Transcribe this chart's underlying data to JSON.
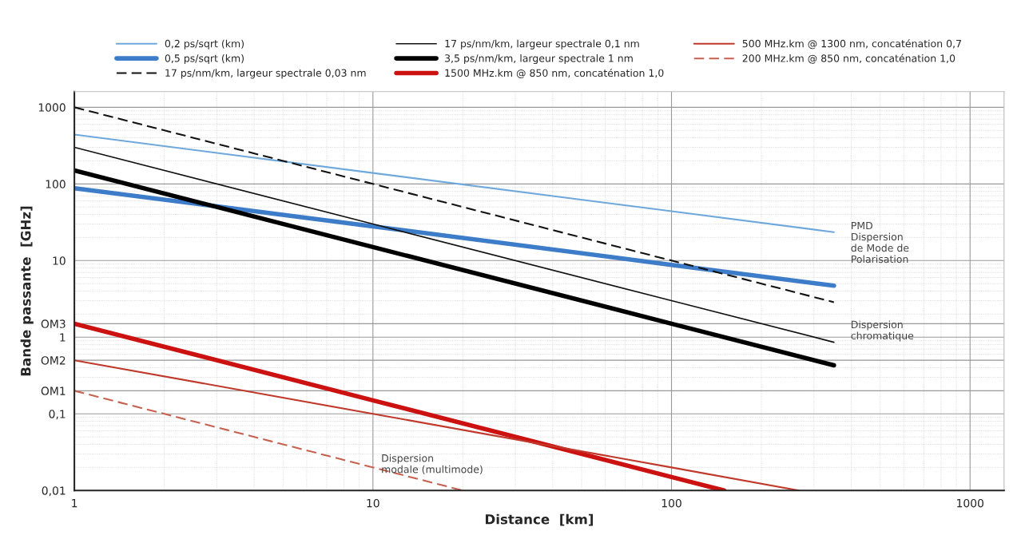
{
  "chart_data": {
    "type": "line",
    "xlabel": "Distance  [km]",
    "ylabel": "Bande passante  [GHz]",
    "log": "xy",
    "xlim": [
      1,
      1300
    ],
    "ylim": [
      0.01,
      1600
    ],
    "xticks": [
      1,
      10,
      100,
      1000
    ],
    "yticks": [
      {
        "value": 0.01,
        "label": "0,01"
      },
      {
        "value": 0.1,
        "label": "0,1"
      },
      {
        "value": 0.2,
        "label": "OM1"
      },
      {
        "value": 0.5,
        "label": "OM2"
      },
      {
        "value": 1,
        "label": "1"
      },
      {
        "value": 1.5,
        "label": "OM3"
      },
      {
        "value": 10,
        "label": "10"
      },
      {
        "value": 100,
        "label": "100"
      },
      {
        "value": 1000,
        "label": "1000"
      }
    ],
    "grid": true,
    "legend": "top",
    "marker": "none",
    "series": [
      {
        "name": "0,2 ps/sqrt (km)",
        "color": "#6fa8dc",
        "x": [
          1,
          10,
          100,
          350
        ],
        "values": [
          440,
          139,
          44,
          23.5
        ],
        "line_style": "solid"
      },
      {
        "name": "0,5 ps/sqrt (km)",
        "color": "#3d7cc9",
        "x": [
          1,
          10,
          100,
          350
        ],
        "values": [
          88,
          28,
          8.8,
          4.7
        ],
        "line_style": "solid"
      },
      {
        "name": "17 ps/nm/km, largeur spectrale 0,03 nm",
        "color": "#111111",
        "x": [
          1,
          10,
          100,
          350
        ],
        "values": [
          1000,
          100,
          10,
          2.86
        ],
        "line_style": "dashed"
      },
      {
        "name": "17 ps/nm/km, largeur spectrale 0,1 nm",
        "color": "#111111",
        "x": [
          1,
          10,
          100,
          350
        ],
        "values": [
          300,
          30,
          3,
          0.86
        ],
        "line_style": "solid"
      },
      {
        "name": "3,5 ps/nm/km, largeur spectrale 1 nm",
        "color": "#000000",
        "x": [
          1,
          10,
          100,
          350
        ],
        "values": [
          150,
          15,
          1.5,
          0.43
        ],
        "line_style": "solid"
      },
      {
        "name": "1500 MHz.km @ 850 nm, concaténation 1,0",
        "color": "#cc1111",
        "x": [
          1,
          10,
          100,
          150
        ],
        "values": [
          1.5,
          0.15,
          0.015,
          0.01
        ],
        "line_style": "solid"
      },
      {
        "name": "500 MHz.km @ 1300 nm, concaténation 0,7",
        "color": "#c0392b",
        "x": [
          1,
          10,
          100,
          267
        ],
        "values": [
          0.5,
          0.1,
          0.02,
          0.01
        ],
        "line_style": "solid"
      },
      {
        "name": "200 MHz.km @ 850 nm, concaténation 1,0",
        "color": "#c86050",
        "x": [
          1,
          20
        ],
        "values": [
          0.2,
          0.01
        ],
        "line_style": "dashed"
      }
    ],
    "annotations": [
      "PMD\nDispersion\nde Mode de\nPolarisation",
      "Dispersion\nchromatique",
      "Dispersion\nmodale (multimode)"
    ]
  }
}
